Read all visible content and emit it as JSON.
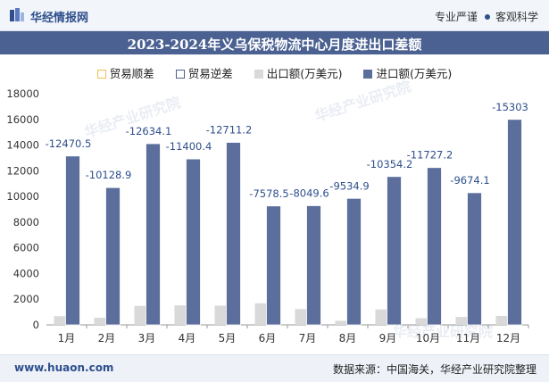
{
  "header": {
    "brand": "华经情报网",
    "tag_left": "专业严谨",
    "tag_right": "客观科学"
  },
  "footer": {
    "site": "www.huaon.com",
    "source": "数据来源：中国海关，华经产业研究院整理"
  },
  "watermark": "华经产业研究院",
  "colors": {
    "import": "#5b6e9c",
    "export": "#d9d9d9",
    "surplus": "#ffd966",
    "deficit": "#4a6191",
    "title_bar": "#4a6191"
  },
  "chart_data": {
    "type": "bar",
    "title": "2023-2024年义乌保税物流中心月度进出口差额",
    "categories": [
      "1月",
      "2月",
      "3月",
      "4月",
      "5月",
      "6月",
      "7月",
      "8月",
      "9月",
      "10月",
      "11月",
      "12月"
    ],
    "series": [
      {
        "name": "贸易顺差",
        "values": [
          0,
          0,
          0,
          0,
          0,
          0,
          0,
          0,
          0,
          0,
          0,
          0
        ]
      },
      {
        "name": "贸易逆差",
        "values": [
          -12470.5,
          -10128.9,
          -12634.1,
          -11400.4,
          -12711.2,
          -7578.5,
          -8049.6,
          -9534.9,
          -10354.2,
          -11727.2,
          -9674.1,
          -15303
        ]
      },
      {
        "name": "出口额(万美元)",
        "values": [
          680,
          560,
          1480,
          1520,
          1500,
          1680,
          1230,
          320,
          1200,
          520,
          620,
          700
        ]
      },
      {
        "name": "进口额(万美元)",
        "values": [
          13150,
          10690,
          14110,
          12920,
          14210,
          9260,
          9280,
          9850,
          11550,
          12250,
          10290,
          16000
        ]
      }
    ],
    "data_labels": [
      "-12470.5",
      "-10128.9",
      "-12634.1",
      "-11400.4",
      "-12711.2",
      "-7578.5",
      "-8049.6",
      "-9534.9",
      "-10354.2",
      "-11727.2",
      "-9674.1",
      "-15303"
    ],
    "yticks": [
      "0",
      "2000",
      "4000",
      "6000",
      "8000",
      "10000",
      "12000",
      "14000",
      "16000",
      "18000"
    ],
    "ylim": [
      0,
      18000
    ],
    "legend_position": "top",
    "grid": false
  }
}
